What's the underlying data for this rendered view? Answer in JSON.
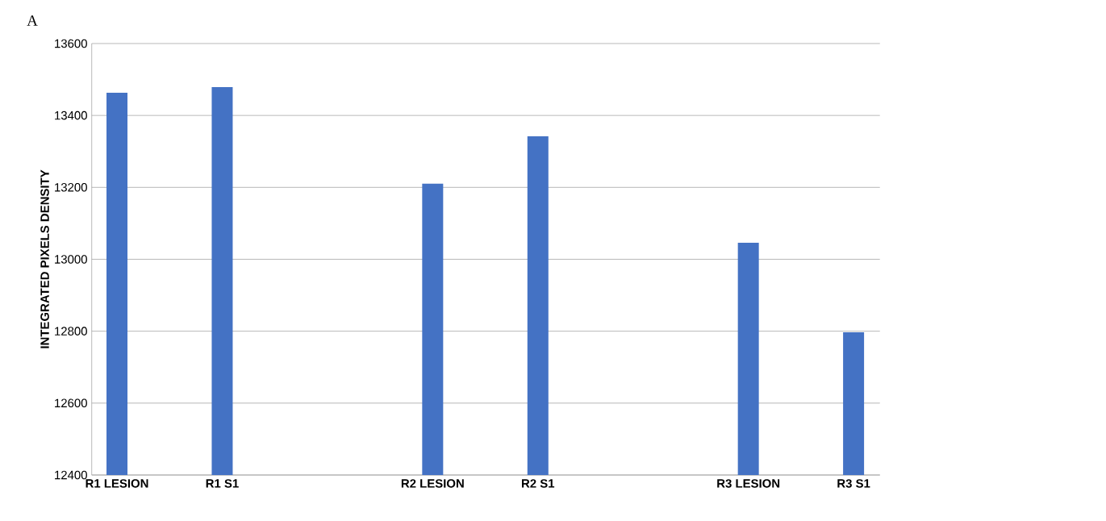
{
  "chart_data": {
    "type": "bar",
    "ylabel": "INTEGRATED PIXELS DENSITY",
    "annotations": [
      "A"
    ],
    "categories": [
      "R1 LESION",
      "R1 S1",
      null,
      "R2 LESION",
      "R2 S1",
      null,
      "R3 LESION",
      "R3 S1"
    ],
    "values": [
      13463,
      13479,
      null,
      13210,
      13342,
      null,
      13046,
      12797
    ],
    "color": "#4472c4",
    "ylim": [
      12400,
      13600
    ],
    "yticks": [
      12400,
      12600,
      12800,
      13000,
      13200,
      13400,
      13600
    ],
    "grid": "y"
  }
}
